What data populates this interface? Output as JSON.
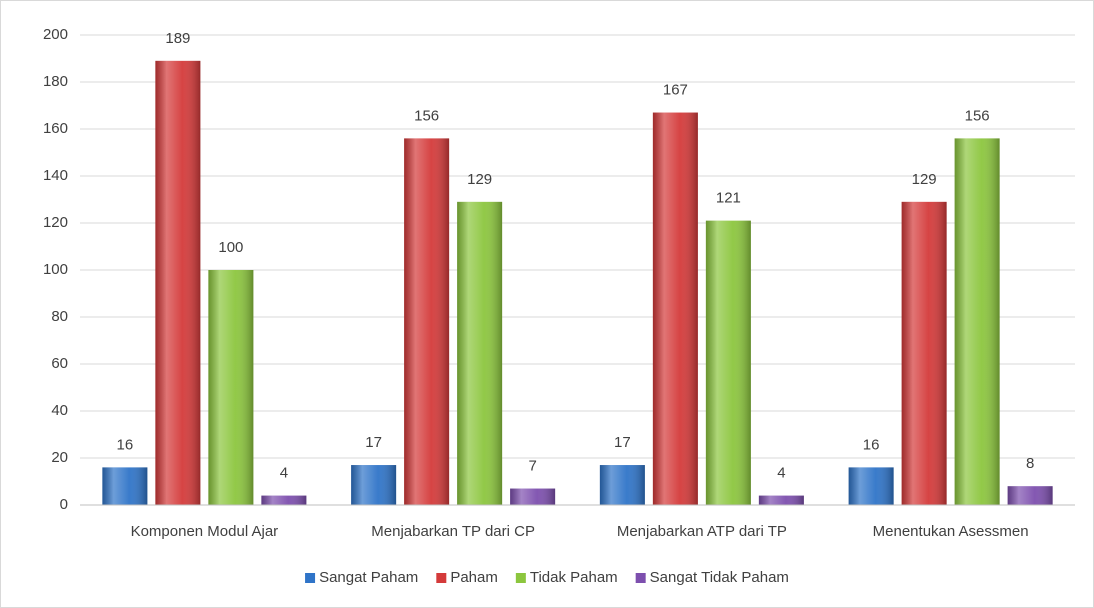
{
  "chart_data": {
    "type": "bar",
    "categories": [
      "Komponen Modul Ajar",
      "Menjabarkan TP dari CP",
      "Menjabarkan ATP dari TP",
      "Menentukan Asessmen"
    ],
    "series": [
      {
        "name": "Sangat Paham",
        "color": "#2f74c8",
        "values": [
          16,
          17,
          17,
          16
        ]
      },
      {
        "name": "Paham",
        "color": "#d43a3a",
        "values": [
          189,
          156,
          167,
          129
        ]
      },
      {
        "name": "Tidak Paham",
        "color": "#8cc63e",
        "values": [
          100,
          129,
          121,
          156
        ]
      },
      {
        "name": "Sangat Tidak Paham",
        "color": "#7d4fae",
        "values": [
          4,
          7,
          4,
          8
        ]
      }
    ],
    "ylim": [
      0,
      200
    ],
    "yticks": [
      0,
      20,
      40,
      60,
      80,
      100,
      120,
      140,
      160,
      180,
      200
    ],
    "grid": true,
    "legend": "bottom"
  }
}
